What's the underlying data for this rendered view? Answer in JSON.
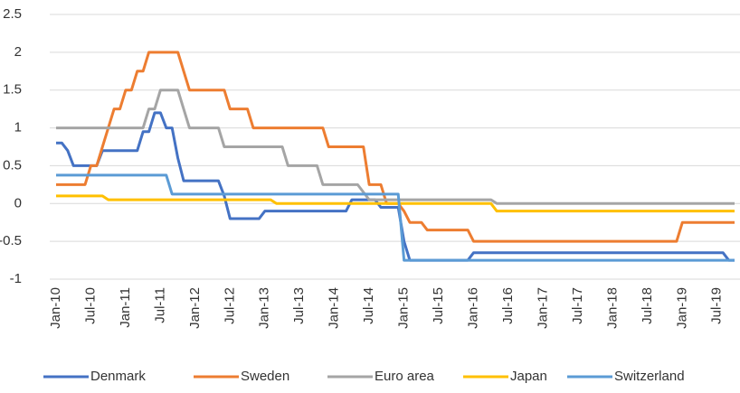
{
  "chart_data": {
    "type": "line",
    "categories": [
      "Jan-10",
      null,
      null,
      null,
      null,
      null,
      "Jul-10",
      null,
      null,
      null,
      null,
      null,
      "Jan-11",
      null,
      null,
      null,
      null,
      null,
      "Jul-11",
      null,
      null,
      null,
      null,
      null,
      "Jan-12",
      null,
      null,
      null,
      null,
      null,
      "Jul-12",
      null,
      null,
      null,
      null,
      null,
      "Jan-13",
      null,
      null,
      null,
      null,
      null,
      "Jul-13",
      null,
      null,
      null,
      null,
      null,
      "Jan-14",
      null,
      null,
      null,
      null,
      null,
      "Jul-14",
      null,
      null,
      null,
      null,
      null,
      "Jan-15",
      null,
      null,
      null,
      null,
      null,
      "Jul-15",
      null,
      null,
      null,
      null,
      null,
      "Jan-16",
      null,
      null,
      null,
      null,
      null,
      "Jul-16",
      null,
      null,
      null,
      null,
      null,
      "Jan-17",
      null,
      null,
      null,
      null,
      null,
      "Jul-17",
      null,
      null,
      null,
      null,
      null,
      "Jan-18",
      null,
      null,
      null,
      null,
      null,
      "Jul-18",
      null,
      null,
      null,
      null,
      null,
      "Jan-19",
      null,
      null,
      null,
      null,
      null,
      "Jul-19",
      null,
      null,
      null
    ],
    "series": [
      {
        "name": "Denmark",
        "color": "#4472c4",
        "values": [
          0.8,
          0.8,
          0.7,
          0.5,
          0.5,
          0.5,
          0.5,
          0.5,
          0.7,
          0.7,
          0.7,
          0.7,
          0.7,
          0.7,
          0.7,
          0.95,
          0.95,
          1.2,
          1.2,
          1.0,
          1.0,
          0.6,
          0.3,
          0.3,
          0.3,
          0.3,
          0.3,
          0.3,
          0.3,
          0.1,
          -0.2,
          -0.2,
          -0.2,
          -0.2,
          -0.2,
          -0.2,
          -0.1,
          -0.1,
          -0.1,
          -0.1,
          -0.1,
          -0.1,
          -0.1,
          -0.1,
          -0.1,
          -0.1,
          -0.1,
          -0.1,
          -0.1,
          -0.1,
          -0.1,
          0.05,
          0.05,
          0.05,
          0.05,
          0.05,
          -0.05,
          -0.05,
          -0.05,
          -0.05,
          -0.5,
          -0.75,
          -0.75,
          -0.75,
          -0.75,
          -0.75,
          -0.75,
          -0.75,
          -0.75,
          -0.75,
          -0.75,
          -0.75,
          -0.65,
          -0.65,
          -0.65,
          -0.65,
          -0.65,
          -0.65,
          -0.65,
          -0.65,
          -0.65,
          -0.65,
          -0.65,
          -0.65,
          -0.65,
          -0.65,
          -0.65,
          -0.65,
          -0.65,
          -0.65,
          -0.65,
          -0.65,
          -0.65,
          -0.65,
          -0.65,
          -0.65,
          -0.65,
          -0.65,
          -0.65,
          -0.65,
          -0.65,
          -0.65,
          -0.65,
          -0.65,
          -0.65,
          -0.65,
          -0.65,
          -0.65,
          -0.65,
          -0.65,
          -0.65,
          -0.65,
          -0.65,
          -0.65,
          -0.65,
          -0.65,
          -0.75,
          -0.75
        ]
      },
      {
        "name": "Sweden",
        "color": "#ed7d31",
        "values": [
          0.25,
          0.25,
          0.25,
          0.25,
          0.25,
          0.25,
          0.5,
          0.5,
          0.75,
          1.0,
          1.25,
          1.25,
          1.5,
          1.5,
          1.75,
          1.75,
          2.0,
          2.0,
          2.0,
          2.0,
          2.0,
          2.0,
          1.75,
          1.5,
          1.5,
          1.5,
          1.5,
          1.5,
          1.5,
          1.5,
          1.25,
          1.25,
          1.25,
          1.25,
          1.0,
          1.0,
          1.0,
          1.0,
          1.0,
          1.0,
          1.0,
          1.0,
          1.0,
          1.0,
          1.0,
          1.0,
          1.0,
          0.75,
          0.75,
          0.75,
          0.75,
          0.75,
          0.75,
          0.75,
          0.25,
          0.25,
          0.25,
          0,
          0,
          0,
          -0.1,
          -0.25,
          -0.25,
          -0.25,
          -0.35,
          -0.35,
          -0.35,
          -0.35,
          -0.35,
          -0.35,
          -0.35,
          -0.35,
          -0.5,
          -0.5,
          -0.5,
          -0.5,
          -0.5,
          -0.5,
          -0.5,
          -0.5,
          -0.5,
          -0.5,
          -0.5,
          -0.5,
          -0.5,
          -0.5,
          -0.5,
          -0.5,
          -0.5,
          -0.5,
          -0.5,
          -0.5,
          -0.5,
          -0.5,
          -0.5,
          -0.5,
          -0.5,
          -0.5,
          -0.5,
          -0.5,
          -0.5,
          -0.5,
          -0.5,
          -0.5,
          -0.5,
          -0.5,
          -0.5,
          -0.5,
          -0.25,
          -0.25,
          -0.25,
          -0.25,
          -0.25,
          -0.25,
          -0.25,
          -0.25,
          -0.25,
          -0.25
        ]
      },
      {
        "name": "Euro area",
        "color": "#a5a5a5",
        "values": [
          1.0,
          1.0,
          1.0,
          1.0,
          1.0,
          1.0,
          1.0,
          1.0,
          1.0,
          1.0,
          1.0,
          1.0,
          1.0,
          1.0,
          1.0,
          1.0,
          1.25,
          1.25,
          1.5,
          1.5,
          1.5,
          1.5,
          1.25,
          1.0,
          1.0,
          1.0,
          1.0,
          1.0,
          1.0,
          0.75,
          0.75,
          0.75,
          0.75,
          0.75,
          0.75,
          0.75,
          0.75,
          0.75,
          0.75,
          0.75,
          0.5,
          0.5,
          0.5,
          0.5,
          0.5,
          0.5,
          0.25,
          0.25,
          0.25,
          0.25,
          0.25,
          0.25,
          0.25,
          0.15,
          0.05,
          0.05,
          0.05,
          0.05,
          0.05,
          0.05,
          0.05,
          0.05,
          0.05,
          0.05,
          0.05,
          0.05,
          0.05,
          0.05,
          0.05,
          0.05,
          0.05,
          0.05,
          0.05,
          0.05,
          0.05,
          0.05,
          0,
          0,
          0,
          0,
          0,
          0,
          0,
          0,
          0,
          0,
          0,
          0,
          0,
          0,
          0,
          0,
          0,
          0,
          0,
          0,
          0,
          0,
          0,
          0,
          0,
          0,
          0,
          0,
          0,
          0,
          0,
          0,
          0,
          0,
          0,
          0,
          0,
          0,
          0,
          0,
          0,
          0
        ]
      },
      {
        "name": "Japan",
        "color": "#ffc000",
        "values": [
          0.1,
          0.1,
          0.1,
          0.1,
          0.1,
          0.1,
          0.1,
          0.1,
          0.1,
          0.05,
          0.05,
          0.05,
          0.05,
          0.05,
          0.05,
          0.05,
          0.05,
          0.05,
          0.05,
          0.05,
          0.05,
          0.05,
          0.05,
          0.05,
          0.05,
          0.05,
          0.05,
          0.05,
          0.05,
          0.05,
          0.05,
          0.05,
          0.05,
          0.05,
          0.05,
          0.05,
          0.05,
          0.05,
          0,
          0,
          0,
          0,
          0,
          0,
          0,
          0,
          0,
          0,
          0,
          0,
          0,
          0,
          0,
          0,
          0,
          0,
          0,
          0,
          0,
          0,
          0,
          0,
          0,
          0,
          0,
          0,
          0,
          0,
          0,
          0,
          0,
          0,
          0,
          0,
          0,
          0,
          -0.1,
          -0.1,
          -0.1,
          -0.1,
          -0.1,
          -0.1,
          -0.1,
          -0.1,
          -0.1,
          -0.1,
          -0.1,
          -0.1,
          -0.1,
          -0.1,
          -0.1,
          -0.1,
          -0.1,
          -0.1,
          -0.1,
          -0.1,
          -0.1,
          -0.1,
          -0.1,
          -0.1,
          -0.1,
          -0.1,
          -0.1,
          -0.1,
          -0.1,
          -0.1,
          -0.1,
          -0.1,
          -0.1,
          -0.1,
          -0.1,
          -0.1,
          -0.1,
          -0.1,
          -0.1,
          -0.1,
          -0.1,
          -0.1
        ]
      },
      {
        "name": "Switzerland",
        "color": "#5b9bd5",
        "values": [
          0.375,
          0.375,
          0.375,
          0.375,
          0.375,
          0.375,
          0.375,
          0.375,
          0.375,
          0.375,
          0.375,
          0.375,
          0.375,
          0.375,
          0.375,
          0.375,
          0.375,
          0.375,
          0.375,
          0.375,
          0.125,
          0.125,
          0.125,
          0.125,
          0.125,
          0.125,
          0.125,
          0.125,
          0.125,
          0.125,
          0.125,
          0.125,
          0.125,
          0.125,
          0.125,
          0.125,
          0.125,
          0.125,
          0.125,
          0.125,
          0.125,
          0.125,
          0.125,
          0.125,
          0.125,
          0.125,
          0.125,
          0.125,
          0.125,
          0.125,
          0.125,
          0.125,
          0.125,
          0.125,
          0.125,
          0.125,
          0.125,
          0.125,
          0.125,
          0.125,
          -0.75,
          -0.75,
          -0.75,
          -0.75,
          -0.75,
          -0.75,
          -0.75,
          -0.75,
          -0.75,
          -0.75,
          -0.75,
          -0.75,
          -0.75,
          -0.75,
          -0.75,
          -0.75,
          -0.75,
          -0.75,
          -0.75,
          -0.75,
          -0.75,
          -0.75,
          -0.75,
          -0.75,
          -0.75,
          -0.75,
          -0.75,
          -0.75,
          -0.75,
          -0.75,
          -0.75,
          -0.75,
          -0.75,
          -0.75,
          -0.75,
          -0.75,
          -0.75,
          -0.75,
          -0.75,
          -0.75,
          -0.75,
          -0.75,
          -0.75,
          -0.75,
          -0.75,
          -0.75,
          -0.75,
          -0.75,
          -0.75,
          -0.75,
          -0.75,
          -0.75,
          -0.75,
          -0.75,
          -0.75,
          -0.75,
          -0.75,
          -0.75
        ]
      }
    ],
    "ylim": [
      -1,
      2.5
    ],
    "yticks": [
      -1,
      {
        "value": -0.5,
        "label": "-0.5"
      },
      0,
      {
        "value": 0.5,
        "label": "0.5"
      },
      1,
      {
        "value": 1.5,
        "label": "1.5"
      },
      2,
      {
        "value": 2.5,
        "label": "2.5"
      }
    ],
    "grid": true,
    "legend": "bottom"
  }
}
